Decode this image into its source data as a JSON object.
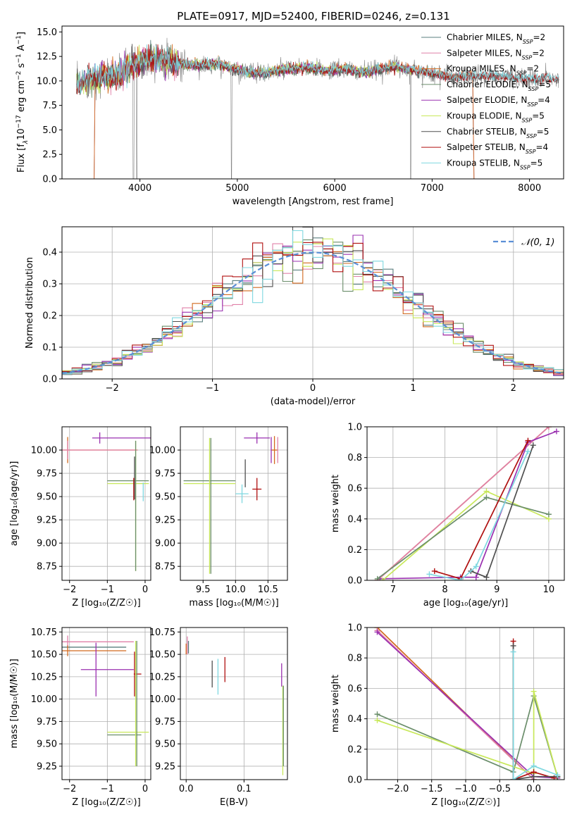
{
  "colors": {
    "chabrier_miles": "#5a7f7f",
    "salpeter_miles": "#e080a8",
    "kroupa_miles": "#d2691e",
    "chabrier_elodie": "#6b8e6b",
    "salpeter_elodie": "#9a30b0",
    "kroupa_elodie": "#c8e85a",
    "chabrier_stelib": "#505050",
    "salpeter_stelib": "#b01010",
    "kroupa_stelib": "#7fd8e0",
    "spectrum": "#808080",
    "normal": "#5b8fd6",
    "grid": "#b0b0b0"
  },
  "chart_data": [
    {
      "id": "spectrum",
      "type": "line",
      "title": "PLATE=0917, MJD=52400, FIBERID=0246, z=0.131",
      "xlabel": "wavelength [Angstrom, rest frame]",
      "ylabel": "Flux [f$_\\lambda$10$^{-17}$ erg cm$^{-2}$ s$^{-1}$ A$^{-1}$]",
      "ylabel_parts": {
        "a": "Flux [f",
        "b": "λ",
        "c": "10",
        "d": "−17",
        "e": " erg cm",
        "f": "−2",
        "g": " s",
        "h": "−1",
        "i": " A",
        "j": "−1",
        "k": "]"
      },
      "xlim": [
        3200,
        8350
      ],
      "ylim": [
        0,
        15.6
      ],
      "xticks": [
        4000,
        5000,
        6000,
        7000,
        8000
      ],
      "xtick_labels": [
        "4000",
        "5000",
        "6000",
        "7000",
        "8000"
      ],
      "yticks": [
        0,
        2.5,
        5,
        7.5,
        10,
        12.5,
        15
      ],
      "ytick_labels": [
        "0.0",
        "2.5",
        "5.0",
        "7.5",
        "10.0",
        "12.5",
        "15.0"
      ],
      "legend_position": "top-right",
      "legend": [
        {
          "label": "Chabrier MILES, N",
          "sub": "SSP",
          "tail": "=2",
          "color": "chabrier_miles"
        },
        {
          "label": "Salpeter MILES, N",
          "sub": "SSP",
          "tail": "=2",
          "color": "salpeter_miles"
        },
        {
          "label": "Kroupa MILES, N",
          "sub": "SSP",
          "tail": "=2",
          "color": "kroupa_miles"
        },
        {
          "label": "Chabrier ELODIE, N",
          "sub": "SSP",
          "tail": "=5",
          "color": "chabrier_elodie"
        },
        {
          "label": "Salpeter ELODIE, N",
          "sub": "SSP",
          "tail": "=4",
          "color": "salpeter_elodie"
        },
        {
          "label": "Kroupa ELODIE, N",
          "sub": "SSP",
          "tail": "=5",
          "color": "kroupa_elodie"
        },
        {
          "label": "Chabrier STELIB, N",
          "sub": "SSP",
          "tail": "=5",
          "color": "chabrier_stelib"
        },
        {
          "label": "Salpeter STELIB, N",
          "sub": "SSP",
          "tail": "=4",
          "color": "salpeter_stelib"
        },
        {
          "label": "Kroupa STELIB, N",
          "sub": "SSP",
          "tail": "=5",
          "color": "kroupa_stelib"
        }
      ],
      "spectrum_anchor_points": {
        "x": [
          3350,
          3420,
          3500,
          3600,
          3700,
          3800,
          3900,
          4000,
          4100,
          4200,
          4300,
          4400,
          4500,
          4600,
          4700,
          4800,
          4900,
          5000,
          5100,
          5200,
          5300,
          5400,
          5500,
          5600,
          5700,
          5800,
          5900,
          6000,
          6100,
          6200,
          6300,
          6400,
          6500,
          6600,
          6700,
          6800,
          6900,
          7000,
          7100,
          7200,
          7300,
          7400,
          7500,
          7600,
          7700,
          7800,
          7900,
          8000,
          8100,
          8200,
          8300
        ],
        "y": [
          9.5,
          10.0,
          10.3,
          10.4,
          10.5,
          10.8,
          11.5,
          12.0,
          12.2,
          12.2,
          11.9,
          11.8,
          11.7,
          11.6,
          11.6,
          11.7,
          11.4,
          11.2,
          10.9,
          10.9,
          10.8,
          11.0,
          11.2,
          11.2,
          11.4,
          11.2,
          11.1,
          11.1,
          11.2,
          11.0,
          10.9,
          11.0,
          11.3,
          11.5,
          11.3,
          11.1,
          11.0,
          10.8,
          10.6,
          10.4,
          10.4,
          10.5,
          10.4,
          10.5,
          10.4,
          10.4,
          10.3,
          10.2,
          10.2,
          10.3,
          10.1
        ]
      }
    },
    {
      "id": "residuals",
      "type": "histogram",
      "xlabel": "(data-model)/error",
      "ylabel": "Normed distribution",
      "xlim": [
        -2.5,
        2.5
      ],
      "ylim": [
        0,
        0.48
      ],
      "xticks": [
        -2,
        -1,
        0,
        1,
        2
      ],
      "xtick_labels": [
        "−2",
        "−1",
        "0",
        "1",
        "2"
      ],
      "yticks": [
        0,
        0.1,
        0.2,
        0.3,
        0.4
      ],
      "ytick_labels": [
        "0.0",
        "0.1",
        "0.2",
        "0.3",
        "0.4"
      ],
      "legend_position": "top-right",
      "legend": [
        {
          "label": "𝒩(0, 1)",
          "color": "normal",
          "style": "dashed"
        }
      ],
      "bin_width": 0.1
    },
    {
      "id": "age_vs_Z",
      "type": "errorbar",
      "xlabel": "Z [log₁₀(Z/Z☉)]",
      "ylabel": "age  [log₁₀(age/yr)]",
      "xlim": [
        -2.2,
        0.15
      ],
      "ylim": [
        8.6,
        10.25
      ],
      "xticks": [
        -2,
        -1,
        0
      ],
      "xtick_labels": [
        "−2",
        "−1",
        "0"
      ],
      "yticks": [
        8.75,
        9.0,
        9.25,
        9.5,
        9.75,
        10.0
      ],
      "ytick_labels": [
        "8.75",
        "9.00",
        "9.25",
        "9.50",
        "9.75",
        "10.00"
      ],
      "points": [
        {
          "x": -0.5,
          "xerr": 0.9,
          "y": 10.13,
          "yerr": 0.06,
          "color": "salpeter_elodie",
          "cx": -1.2
        },
        {
          "x": -1.4,
          "xerr": 1.2,
          "y": 10.0,
          "yerr": 0.14,
          "color": "kroupa_miles",
          "cx": -2.05
        },
        {
          "x": -1.4,
          "xerr": 1.2,
          "y": 10.0,
          "yerr": 0.1,
          "color": "salpeter_miles",
          "cx": -2.05
        },
        {
          "x": -0.45,
          "xerr": 0.55,
          "y": 9.67,
          "yerr": 0.0,
          "color": "chabrier_elodie",
          "cx": -0.1
        },
        {
          "x": -0.45,
          "xerr": 0.55,
          "y": 9.64,
          "yerr": 0.0,
          "color": "kroupa_elodie",
          "cx": -0.1
        },
        {
          "x": -0.25,
          "xerr": 0.0,
          "y": 9.4,
          "yerr": 0.7,
          "color": "kroupa_elodie",
          "cx": -0.25
        },
        {
          "x": -0.25,
          "xerr": 0.0,
          "y": 9.4,
          "yerr": 0.7,
          "color": "chabrier_elodie",
          "cx": -0.25
        },
        {
          "x": -0.28,
          "xerr": 0.0,
          "y": 9.7,
          "yerr": 0.23,
          "color": "chabrier_stelib",
          "cx": -0.28
        },
        {
          "x": -0.3,
          "xerr": 0.0,
          "y": 9.58,
          "yerr": 0.12,
          "color": "salpeter_stelib",
          "cx": -0.3
        },
        {
          "x": -0.3,
          "xerr": 0.0,
          "y": 9.55,
          "yerr": 0.1,
          "color": "kroupa_stelib",
          "cx": -0.05
        }
      ]
    },
    {
      "id": "age_vs_mass",
      "type": "errorbar",
      "xlabel": "mass [log₁₀(M/M☉)]",
      "xlim": [
        9.15,
        10.8
      ],
      "ylim": [
        8.6,
        10.25
      ],
      "xticks": [
        9.5,
        10.0,
        10.5
      ],
      "xtick_labels": [
        "9.5",
        "10.0",
        "10.5"
      ],
      "yticks": [
        8.75,
        9.0,
        9.25,
        9.5,
        9.75,
        10.0
      ],
      "ytick_labels": [
        "8.75",
        "9.00",
        "9.25",
        "9.50",
        "9.75",
        "10.00"
      ],
      "points": [
        {
          "x": 10.33,
          "xerr": 0.2,
          "y": 10.13,
          "yerr": 0.06,
          "color": "salpeter_elodie"
        },
        {
          "x": 10.6,
          "xerr": 0.05,
          "y": 10.0,
          "yerr": 0.15,
          "color": "kroupa_miles"
        },
        {
          "x": 10.65,
          "xerr": 0.0,
          "y": 10.0,
          "yerr": 0.14,
          "color": "salpeter_miles"
        },
        {
          "x": 10.55,
          "xerr": 0.0,
          "y": 10.0,
          "yerr": 0.14,
          "color": "salpeter_elodie"
        },
        {
          "x": 9.6,
          "xerr": 0.4,
          "y": 9.67,
          "yerr": 0.0,
          "color": "chabrier_elodie"
        },
        {
          "x": 9.6,
          "xerr": 0.4,
          "y": 9.64,
          "yerr": 0.0,
          "color": "kroupa_elodie"
        },
        {
          "x": 9.6,
          "xerr": 0.0,
          "y": 9.4,
          "yerr": 0.73,
          "color": "kroupa_elodie"
        },
        {
          "x": 9.62,
          "xerr": 0.0,
          "y": 9.4,
          "yerr": 0.73,
          "color": "chabrier_elodie"
        },
        {
          "x": 10.15,
          "xerr": 0.0,
          "y": 9.75,
          "yerr": 0.15,
          "color": "chabrier_stelib"
        },
        {
          "x": 10.33,
          "xerr": 0.07,
          "y": 9.58,
          "yerr": 0.12,
          "color": "salpeter_stelib"
        },
        {
          "x": 10.1,
          "xerr": 0.1,
          "y": 9.53,
          "yerr": 0.1,
          "color": "kroupa_stelib"
        }
      ]
    },
    {
      "id": "weight_vs_age",
      "type": "line",
      "xlabel": "age  [log₁₀(age/yr)]",
      "ylabel": "mass weight",
      "xlim": [
        6.5,
        10.3
      ],
      "ylim": [
        0,
        1.0
      ],
      "xticks": [
        7,
        8,
        9,
        10
      ],
      "xtick_labels": [
        "7",
        "8",
        "9",
        "10"
      ],
      "yticks": [
        0,
        0.2,
        0.4,
        0.6,
        0.8,
        1.0
      ],
      "ytick_labels": [
        "0.0",
        "0.2",
        "0.4",
        "0.6",
        "0.8",
        "1.0"
      ],
      "series": [
        {
          "color": "kroupa_miles",
          "x": [
            6.7,
            10.0
          ],
          "y": [
            0.0,
            1.0
          ]
        },
        {
          "color": "salpeter_miles",
          "x": [
            6.7,
            10.0
          ],
          "y": [
            0.0,
            1.0
          ]
        },
        {
          "color": "salpeter_elodie",
          "x": [
            6.75,
            8.3,
            8.6,
            9.6,
            10.15
          ],
          "y": [
            0.01,
            0.02,
            0.02,
            0.9,
            0.97
          ]
        },
        {
          "color": "kroupa_elodie",
          "x": [
            6.8,
            8.8,
            10.0
          ],
          "y": [
            0.0,
            0.58,
            0.4
          ]
        },
        {
          "color": "chabrier_elodie",
          "x": [
            6.7,
            8.8,
            10.0
          ],
          "y": [
            0.01,
            0.54,
            0.43
          ]
        },
        {
          "color": "salpeter_stelib",
          "x": [
            7.8,
            8.3,
            9.6
          ],
          "y": [
            0.06,
            0.01,
            0.91
          ]
        },
        {
          "color": "chabrier_stelib",
          "x": [
            8.5,
            8.8,
            9.7
          ],
          "y": [
            0.06,
            0.02,
            0.88
          ]
        },
        {
          "color": "kroupa_stelib",
          "x": [
            7.7,
            8.3,
            8.6,
            9.6
          ],
          "y": [
            0.04,
            0.0,
            0.09,
            0.84
          ]
        }
      ]
    },
    {
      "id": "mass_vs_Z",
      "type": "errorbar",
      "xlabel": "Z [log₁₀(Z/Z☉)]",
      "ylabel": "mass [log₁₀(M/M☉)]",
      "xlim": [
        -2.2,
        0.15
      ],
      "ylim": [
        9.1,
        10.8
      ],
      "xticks": [
        -2,
        -1,
        0
      ],
      "xtick_labels": [
        "−2",
        "−1",
        "0"
      ],
      "yticks": [
        9.25,
        9.5,
        9.75,
        10.0,
        10.25,
        10.5,
        10.75
      ],
      "ytick_labels": [
        "9.25",
        "9.50",
        "9.75",
        "10.00",
        "10.25",
        "10.50",
        "10.75"
      ],
      "points": [
        {
          "x": -1.25,
          "xerr": 0.95,
          "y": 10.64,
          "yerr": 0.07,
          "color": "salpeter_miles",
          "cx": -2.05
        },
        {
          "x": -1.35,
          "xerr": 0.85,
          "y": 10.58,
          "yerr": 0.0,
          "color": "chabrier_miles",
          "cx": -2.05
        },
        {
          "x": -1.35,
          "xerr": 0.85,
          "y": 10.54,
          "yerr": 0.06,
          "color": "kroupa_miles",
          "cx": -2.05
        },
        {
          "x": -1.0,
          "xerr": 0.7,
          "y": 10.33,
          "yerr": 0.3,
          "color": "salpeter_elodie",
          "cx": -1.3
        },
        {
          "x": -0.2,
          "xerr": 0.1,
          "y": 10.28,
          "yerr": 0.25,
          "color": "salpeter_stelib",
          "cx": -0.28
        },
        {
          "x": -0.25,
          "xerr": 0.0,
          "y": 10.14,
          "yerr": 0.0,
          "color": "chabrier_stelib",
          "cx": -0.25
        },
        {
          "x": -0.15,
          "xerr": 0.0,
          "y": 10.1,
          "yerr": 0.0,
          "color": "kroupa_stelib",
          "cx": -0.15
        },
        {
          "x": -0.55,
          "xerr": 0.45,
          "y": 9.6,
          "yerr": 0.0,
          "color": "chabrier_elodie",
          "cx": -0.55
        },
        {
          "x": -0.45,
          "xerr": 0.55,
          "y": 9.63,
          "yerr": 0.0,
          "color": "kroupa_elodie",
          "cx": -0.45
        },
        {
          "x": -0.25,
          "xerr": 0.0,
          "y": 9.95,
          "yerr": 0.7,
          "color": "kroupa_elodie",
          "cx": -0.25
        },
        {
          "x": -0.22,
          "xerr": 0.0,
          "y": 9.95,
          "yerr": 0.7,
          "color": "chabrier_elodie",
          "cx": -0.22
        }
      ]
    },
    {
      "id": "mass_vs_ebv",
      "type": "errorbar",
      "xlabel": "E(B-V)",
      "xlim": [
        -0.01,
        0.175
      ],
      "ylim": [
        9.1,
        10.8
      ],
      "xticks": [
        0.0,
        0.1
      ],
      "xtick_labels": [
        "0.0",
        "0.1"
      ],
      "yticks": [
        9.25,
        9.5,
        9.75,
        10.0,
        10.25,
        10.5,
        10.75
      ],
      "ytick_labels": [
        "9.25",
        "9.50",
        "9.75",
        "10.00",
        "10.25",
        "10.50",
        "10.75"
      ],
      "points": [
        {
          "x": 0.002,
          "y": 10.6,
          "yerr": 0.1,
          "color": "salpeter_miles"
        },
        {
          "x": 0.0,
          "y": 10.56,
          "yerr": 0.06,
          "color": "kroupa_miles"
        },
        {
          "x": 0.004,
          "y": 10.58,
          "yerr": 0.07,
          "color": "chabrier_miles"
        },
        {
          "x": 0.045,
          "y": 10.28,
          "yerr": 0.15,
          "color": "chabrier_stelib"
        },
        {
          "x": 0.055,
          "y": 10.25,
          "yerr": 0.2,
          "color": "kroupa_stelib"
        },
        {
          "x": 0.067,
          "y": 10.33,
          "yerr": 0.14,
          "color": "salpeter_stelib"
        },
        {
          "x": 0.165,
          "y": 10.27,
          "yerr": 0.13,
          "color": "salpeter_elodie"
        },
        {
          "x": 0.167,
          "y": 9.65,
          "yerr": 0.5,
          "color": "kroupa_elodie"
        },
        {
          "x": 0.168,
          "y": 9.7,
          "yerr": 0.45,
          "color": "chabrier_elodie"
        }
      ]
    },
    {
      "id": "weight_vs_Z",
      "type": "line",
      "xlabel": "Z [log₁₀(Z/Z☉)]",
      "ylabel": "mass weight",
      "xlim": [
        -2.45,
        0.45
      ],
      "ylim": [
        0,
        1.0
      ],
      "xticks": [
        -2.0,
        -1.5,
        -1.0,
        -0.5,
        0.0
      ],
      "xtick_labels": [
        "−2.0",
        "−1.5",
        "−1.0",
        "−0.5",
        "0.0"
      ],
      "yticks": [
        0,
        0.2,
        0.4,
        0.6,
        0.8,
        1.0
      ],
      "ytick_labels": [
        "0.0",
        "0.2",
        "0.4",
        "0.6",
        "0.8",
        "1.0"
      ],
      "series": [
        {
          "color": "kroupa_miles",
          "x": [
            -2.3,
            0.0
          ],
          "y": [
            1.0,
            0.0
          ]
        },
        {
          "color": "salpeter_miles",
          "x": [
            -2.3,
            0.0
          ],
          "y": [
            0.98,
            0.0
          ]
        },
        {
          "color": "salpeter_elodie",
          "x": [
            -2.3,
            0.0,
            0.35
          ],
          "y": [
            0.97,
            0.02,
            0.01
          ]
        },
        {
          "color": "chabrier_elodie",
          "x": [
            -2.3,
            -0.3,
            0.0,
            0.35
          ],
          "y": [
            0.43,
            0.05,
            0.55,
            0.02
          ]
        },
        {
          "color": "kroupa_elodie",
          "x": [
            -2.3,
            0.0,
            0.0,
            0.35
          ],
          "y": [
            0.39,
            0.04,
            0.58,
            0.02
          ]
        },
        {
          "color": "salpeter_stelib",
          "x": [
            -0.3,
            -0.3,
            0.0,
            0.3
          ],
          "y": [
            0.91,
            0.0,
            0.05,
            0.01
          ]
        },
        {
          "color": "chabrier_stelib",
          "x": [
            -0.3,
            -0.3,
            0.0,
            0.35
          ],
          "y": [
            0.88,
            0.0,
            0.02,
            0.02
          ]
        },
        {
          "color": "kroupa_stelib",
          "x": [
            -0.3,
            -0.3,
            0.0,
            0.35
          ],
          "y": [
            0.84,
            0.0,
            0.09,
            0.03
          ]
        }
      ]
    }
  ]
}
